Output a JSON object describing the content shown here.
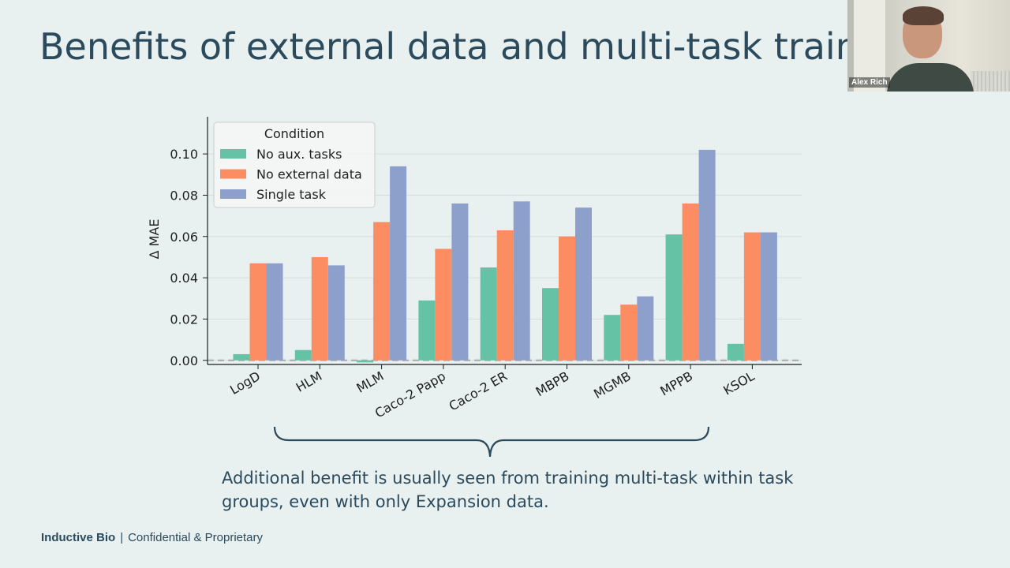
{
  "slide": {
    "title": "Benefits of external data and multi-task traini",
    "caption": "Additional benefit is usually seen from training multi-task within task groups, even with only Expansion data.",
    "footer_brand": "Inductive Bio",
    "footer_separator": "|",
    "footer_text": "Confidential & Proprietary"
  },
  "webcam": {
    "name": "Alex Rich"
  },
  "chart_data": {
    "type": "bar",
    "title": "",
    "xlabel": "",
    "ylabel": "Δ MAE",
    "ylim": [
      -0.002,
      0.118
    ],
    "yticks": [
      0.0,
      0.02,
      0.04,
      0.06,
      0.08,
      0.1
    ],
    "ytick_labels": [
      "0.00",
      "0.02",
      "0.04",
      "0.06",
      "0.08",
      "0.10"
    ],
    "grid": true,
    "reference_line": 0,
    "legend_title": "Condition",
    "legend_position": "top-left",
    "categories": [
      "LogD",
      "HLM",
      "MLM",
      "Caco-2 Papp",
      "Caco-2 ER",
      "MBPB",
      "MGMB",
      "MPPB",
      "KSOL"
    ],
    "series": [
      {
        "name": "No aux. tasks",
        "color": "#66c2a5",
        "values": [
          0.003,
          0.005,
          -0.001,
          0.029,
          0.045,
          0.035,
          0.022,
          0.061,
          0.008
        ]
      },
      {
        "name": "No external data",
        "color": "#fc8d62",
        "values": [
          0.047,
          0.05,
          0.067,
          0.054,
          0.063,
          0.06,
          0.027,
          0.076,
          0.062
        ]
      },
      {
        "name": "Single task",
        "color": "#8da0cb",
        "values": [
          0.047,
          0.046,
          0.094,
          0.076,
          0.077,
          0.074,
          0.031,
          0.102,
          0.062
        ]
      }
    ]
  }
}
